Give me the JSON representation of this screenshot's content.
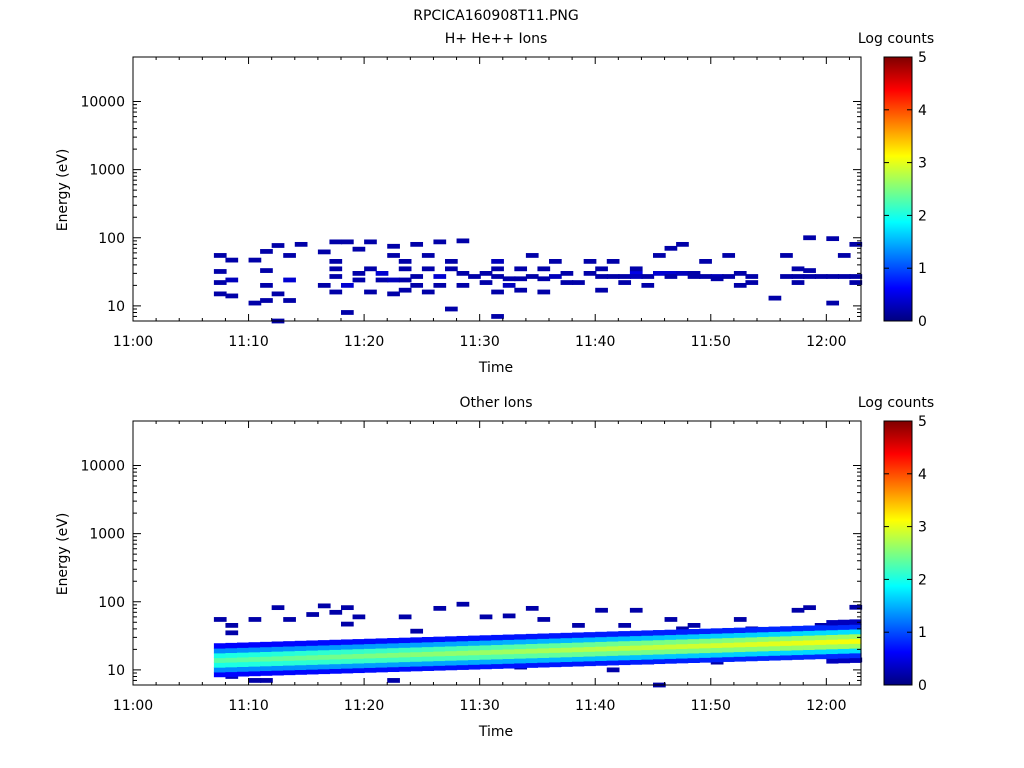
{
  "page_title": "RPCICA160908T11.PNG",
  "colors": {
    "colormap": [
      "#00007f",
      "#0000ff",
      "#007fff",
      "#00ffff",
      "#7fff7f",
      "#ffff00",
      "#ff7f00",
      "#ff0000",
      "#7f0000"
    ]
  },
  "chart_data": [
    {
      "type": "heatmap",
      "title": "H+ He++ Ions",
      "xlabel": "Time",
      "ylabel": "Energy (eV)",
      "x_ticks": [
        "11:00",
        "11:10",
        "11:20",
        "11:30",
        "11:40",
        "11:50",
        "12:00"
      ],
      "xlim": [
        "11:00",
        "12:03"
      ],
      "y_scale": "log",
      "ylim": [
        6,
        45000
      ],
      "y_ticks": [
        "10",
        "100",
        "1000",
        "10000"
      ],
      "colorbar": {
        "label": "Log counts",
        "range": [
          0,
          5
        ],
        "ticks": [
          "0",
          "1",
          "2",
          "3",
          "4",
          "5"
        ]
      },
      "grid": false,
      "cells": [
        [
          "11:07",
          55,
          0.2
        ],
        [
          "11:07",
          32,
          0.2
        ],
        [
          "11:07",
          22,
          0.2
        ],
        [
          "11:07",
          15,
          0.2
        ],
        [
          "11:08",
          47,
          0.2
        ],
        [
          "11:08",
          14,
          0.2
        ],
        [
          "11:08",
          24,
          0.3
        ],
        [
          "11:10",
          47,
          0.2
        ],
        [
          "11:10",
          11,
          0.2
        ],
        [
          "11:11",
          63,
          0.2
        ],
        [
          "11:11",
          33,
          0.2
        ],
        [
          "11:11",
          20,
          0.2
        ],
        [
          "11:11",
          12,
          0.2
        ],
        [
          "11:12",
          77,
          0.2
        ],
        [
          "11:12",
          6,
          0.2
        ],
        [
          "11:12",
          15,
          0.2
        ],
        [
          "11:13",
          24,
          0.4
        ],
        [
          "11:13",
          12,
          0.2
        ],
        [
          "11:13",
          55,
          0.2
        ],
        [
          "11:14",
          80,
          0.2
        ],
        [
          "11:16",
          20,
          0.2
        ],
        [
          "11:16",
          62,
          0.2
        ],
        [
          "11:17",
          87,
          0.2
        ],
        [
          "11:17",
          45,
          0.2
        ],
        [
          "11:17",
          35,
          0.2
        ],
        [
          "11:17",
          27,
          0.2
        ],
        [
          "11:17",
          16,
          0.2
        ],
        [
          "11:18",
          87,
          0.2
        ],
        [
          "11:18",
          20,
          0.4
        ],
        [
          "11:18",
          8,
          0.2
        ],
        [
          "11:19",
          68,
          0.2
        ],
        [
          "11:19",
          24,
          0.2
        ],
        [
          "11:19",
          30,
          0.2
        ],
        [
          "11:20",
          35,
          0.2
        ],
        [
          "11:20",
          16,
          0.2
        ],
        [
          "11:20",
          87,
          0.2
        ],
        [
          "11:21",
          30,
          0.4
        ],
        [
          "11:21",
          24,
          0.2
        ],
        [
          "11:22",
          75,
          0.2
        ],
        [
          "11:22",
          55,
          0.2
        ],
        [
          "11:22",
          24,
          0.3
        ],
        [
          "11:22",
          15,
          0.2
        ],
        [
          "11:23",
          35,
          0.2
        ],
        [
          "11:23",
          24,
          0.2
        ],
        [
          "11:23",
          17,
          0.2
        ],
        [
          "11:23",
          45,
          0.2
        ],
        [
          "11:24",
          80,
          0.2
        ],
        [
          "11:24",
          27,
          0.2
        ],
        [
          "11:24",
          20,
          0.2
        ],
        [
          "11:25",
          55,
          0.2
        ],
        [
          "11:25",
          35,
          0.2
        ],
        [
          "11:25",
          16,
          0.2
        ],
        [
          "11:26",
          87,
          0.2
        ],
        [
          "11:26",
          27,
          0.4
        ],
        [
          "11:26",
          20,
          0.2
        ],
        [
          "11:27",
          45,
          0.2
        ],
        [
          "11:27",
          35,
          0.2
        ],
        [
          "11:27",
          9,
          0.2
        ],
        [
          "11:28",
          90,
          0.2
        ],
        [
          "11:28",
          20,
          0.2
        ],
        [
          "11:28",
          30,
          0.2
        ],
        [
          "11:29",
          27,
          0.2
        ],
        [
          "11:30",
          22,
          0.2
        ],
        [
          "11:30",
          30,
          0.2
        ],
        [
          "11:31",
          45,
          0.3
        ],
        [
          "11:31",
          27,
          0.2
        ],
        [
          "11:31",
          35,
          0.2
        ],
        [
          "11:31",
          16,
          0.2
        ],
        [
          "11:31",
          7,
          0.2
        ],
        [
          "11:32",
          25,
          0.2
        ],
        [
          "11:32",
          20,
          0.3
        ],
        [
          "11:33",
          25,
          0.2
        ],
        [
          "11:33",
          35,
          0.2
        ],
        [
          "11:33",
          17,
          0.2
        ],
        [
          "11:34",
          55,
          0.2
        ],
        [
          "11:34",
          27,
          0.2
        ],
        [
          "11:35",
          25,
          0.2
        ],
        [
          "11:35",
          35,
          0.2
        ],
        [
          "11:35",
          16,
          0.2
        ],
        [
          "11:36",
          27,
          0.3
        ],
        [
          "11:36",
          45,
          0.2
        ],
        [
          "11:37",
          22,
          0.2
        ],
        [
          "11:37",
          30,
          0.2
        ],
        [
          "11:38",
          22,
          0.2
        ],
        [
          "11:39",
          45,
          0.2
        ],
        [
          "11:39",
          30,
          0.2
        ],
        [
          "11:40",
          27,
          0.2
        ],
        [
          "11:40",
          17,
          0.2
        ],
        [
          "11:40",
          35,
          0.2
        ],
        [
          "11:41",
          45,
          0.2
        ],
        [
          "11:41",
          27,
          0.2
        ],
        [
          "11:42",
          27,
          0.2
        ],
        [
          "11:42",
          22,
          0.2
        ],
        [
          "11:43",
          30,
          0.5
        ],
        [
          "11:43",
          27,
          0.3
        ],
        [
          "11:43",
          35,
          0.2
        ],
        [
          "11:44",
          27,
          0.2
        ],
        [
          "11:44",
          20,
          0.2
        ],
        [
          "11:45",
          55,
          0.2
        ],
        [
          "11:45",
          30,
          0.4
        ],
        [
          "11:46",
          70,
          0.2
        ],
        [
          "11:46",
          30,
          0.4
        ],
        [
          "11:46",
          27,
          0.2
        ],
        [
          "11:47",
          80,
          0.2
        ],
        [
          "11:47",
          30,
          0.3
        ],
        [
          "11:48",
          27,
          0.2
        ],
        [
          "11:48",
          30,
          0.2
        ],
        [
          "11:49",
          27,
          0.2
        ],
        [
          "11:49",
          45,
          0.2
        ],
        [
          "11:50",
          27,
          0.3
        ],
        [
          "11:50",
          25,
          0.2
        ],
        [
          "11:51",
          27,
          0.2
        ],
        [
          "11:51",
          55,
          0.2
        ],
        [
          "11:52",
          20,
          0.2
        ],
        [
          "11:52",
          30,
          0.2
        ],
        [
          "11:53",
          27,
          0.2
        ],
        [
          "11:53",
          22,
          0.2
        ],
        [
          "11:55",
          13,
          0.2
        ],
        [
          "11:56",
          55,
          0.2
        ],
        [
          "11:56",
          27,
          0.2
        ],
        [
          "11:57",
          22,
          0.2
        ],
        [
          "11:57",
          27,
          0.2
        ],
        [
          "11:57",
          35,
          0.2
        ],
        [
          "11:58",
          27,
          0.2
        ],
        [
          "11:58",
          33,
          0.2
        ],
        [
          "11:58",
          100,
          0.2
        ],
        [
          "11:59",
          27,
          0.2
        ],
        [
          "12:00",
          11,
          0.2
        ],
        [
          "12:00",
          27,
          0.2
        ],
        [
          "12:00",
          97,
          0.2
        ],
        [
          "12:01",
          55,
          0.2
        ],
        [
          "12:01",
          27,
          0.2
        ],
        [
          "12:02",
          27,
          0.2
        ],
        [
          "12:02",
          22,
          0.2
        ],
        [
          "12:02",
          80,
          0.2
        ]
      ]
    },
    {
      "type": "heatmap",
      "title": "Other Ions",
      "xlabel": "Time",
      "ylabel": "Energy (eV)",
      "x_ticks": [
        "11:00",
        "11:10",
        "11:20",
        "11:30",
        "11:40",
        "11:50",
        "12:00"
      ],
      "xlim": [
        "11:00",
        "12:03"
      ],
      "y_scale": "log",
      "ylim": [
        6,
        45000
      ],
      "y_ticks": [
        "10",
        "100",
        "1000",
        "10000"
      ],
      "colorbar": {
        "label": "Log counts",
        "range": [
          0,
          5
        ],
        "ticks": [
          "0",
          "1",
          "2",
          "3",
          "4",
          "5"
        ]
      },
      "grid": false,
      "band": {
        "time_range": [
          "11:07",
          "12:03"
        ],
        "center_start_ev": 14,
        "center_end_ev": 27,
        "peak_log_counts_start": 2.3,
        "peak_log_counts_end": 3.1
      },
      "cells": [
        [
          "11:07",
          55,
          0.2
        ],
        [
          "11:08",
          8,
          0.3
        ],
        [
          "11:08",
          45,
          0.2
        ],
        [
          "11:08",
          35,
          0.2
        ],
        [
          "11:10",
          55,
          0.2
        ],
        [
          "11:10",
          7,
          0.2
        ],
        [
          "11:11",
          7,
          0.2
        ],
        [
          "11:12",
          82,
          0.2
        ],
        [
          "11:13",
          55,
          0.2
        ],
        [
          "11:14",
          12,
          0.2
        ],
        [
          "11:15",
          65,
          0.2
        ],
        [
          "11:16",
          87,
          0.2
        ],
        [
          "11:17",
          70,
          0.2
        ],
        [
          "11:17",
          11,
          0.2
        ],
        [
          "11:18",
          82,
          0.2
        ],
        [
          "11:18",
          47,
          0.2
        ],
        [
          "11:19",
          60,
          0.2
        ],
        [
          "11:20",
          10,
          0.2
        ],
        [
          "11:21",
          13,
          0.2
        ],
        [
          "11:22",
          7,
          0.2
        ],
        [
          "11:23",
          60,
          0.2
        ],
        [
          "11:24",
          37,
          0.2
        ],
        [
          "11:25",
          11,
          0.2
        ],
        [
          "11:26",
          80,
          0.2
        ],
        [
          "11:27",
          13,
          0.2
        ],
        [
          "11:28",
          92,
          0.2
        ],
        [
          "11:30",
          60,
          0.2
        ],
        [
          "11:31",
          12,
          0.2
        ],
        [
          "11:32",
          62,
          0.2
        ],
        [
          "11:33",
          11,
          0.2
        ],
        [
          "11:34",
          80,
          0.2
        ],
        [
          "11:35",
          55,
          0.2
        ],
        [
          "11:36",
          12,
          0.2
        ],
        [
          "11:38",
          45,
          0.2
        ],
        [
          "11:40",
          75,
          0.2
        ],
        [
          "11:41",
          10,
          0.2
        ],
        [
          "11:42",
          45,
          0.2
        ],
        [
          "11:43",
          75,
          0.2
        ],
        [
          "11:44",
          13,
          0.2
        ],
        [
          "11:45",
          6,
          0.2
        ],
        [
          "11:46",
          55,
          0.2
        ],
        [
          "11:47",
          40,
          0.2
        ],
        [
          "11:48",
          45,
          0.2
        ],
        [
          "11:50",
          13,
          0.2
        ],
        [
          "11:52",
          55,
          0.2
        ],
        [
          "11:53",
          40,
          0.2
        ],
        [
          "11:55",
          16,
          0.2
        ],
        [
          "11:57",
          75,
          0.2
        ],
        [
          "11:58",
          82,
          0.2
        ],
        [
          "11:59",
          45,
          0.2
        ],
        [
          "12:00",
          16,
          0.2
        ],
        [
          "12:02",
          83,
          0.2
        ],
        [
          "12:02",
          14,
          0.2
        ]
      ]
    }
  ]
}
